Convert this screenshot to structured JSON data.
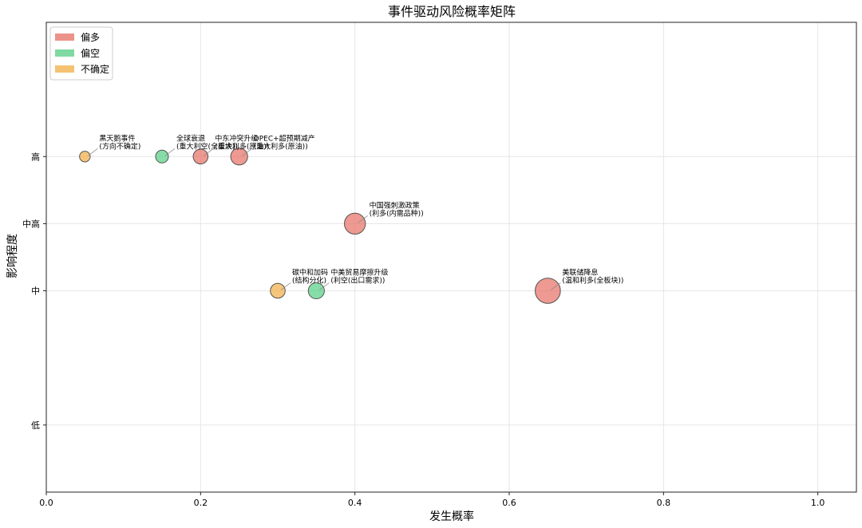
{
  "chart_data": {
    "type": "scatter",
    "title": "事件驱动风险概率矩阵",
    "xlabel": "发生概率",
    "ylabel": "影响程度",
    "xlim": [
      0,
      1.05
    ],
    "ylim": [
      0.0,
      3.5
    ],
    "x_ticks": [
      {
        "value": 0.0,
        "label": "0.0"
      },
      {
        "value": 0.2,
        "label": "0.2"
      },
      {
        "value": 0.4,
        "label": "0.4"
      },
      {
        "value": 0.6,
        "label": "0.6"
      },
      {
        "value": 0.8,
        "label": "0.8"
      },
      {
        "value": 1.0,
        "label": "1.0"
      }
    ],
    "y_ticks": [
      {
        "value": 0.5,
        "label": "低"
      },
      {
        "value": 1.5,
        "label": "中"
      },
      {
        "value": 2.0,
        "label": "中高"
      },
      {
        "value": 2.5,
        "label": "高"
      }
    ],
    "grid": true,
    "legend_position": "top-left",
    "legend": [
      {
        "label": "偏多",
        "color": "#e8776c"
      },
      {
        "label": "偏空",
        "color": "#5fd18a"
      },
      {
        "label": "不确定",
        "color": "#f2b24f"
      }
    ],
    "points": [
      {
        "x": 0.05,
        "y": 2.5,
        "impact": 2.5,
        "category": "不确定",
        "color": "#f2b24f",
        "label_lines": [
          "黑天鹅事件",
          "(方向不确定)"
        ]
      },
      {
        "x": 0.15,
        "y": 2.5,
        "impact": 3.0,
        "category": "偏空",
        "color": "#5fd18a",
        "label_lines": [
          "全球衰退",
          "(重大利空(全板块))"
        ]
      },
      {
        "x": 0.2,
        "y": 2.5,
        "impact": 3.5,
        "category": "偏多",
        "color": "#e8776c",
        "label_lines": [
          "中东冲突升级",
          "(重大利多(原油))"
        ]
      },
      {
        "x": 0.25,
        "y": 2.5,
        "impact": 4.0,
        "category": "偏多",
        "color": "#e8776c",
        "label_lines": [
          "OPEC+超预期减产",
          "(重大利多(原油))"
        ]
      },
      {
        "x": 0.4,
        "y": 2.0,
        "impact": 5.0,
        "category": "偏多",
        "color": "#e8776c",
        "label_lines": [
          "中国强刺激政策",
          "(利多(内需品种))"
        ]
      },
      {
        "x": 0.3,
        "y": 1.5,
        "impact": 3.5,
        "category": "不确定",
        "color": "#f2b24f",
        "label_lines": [
          "碳中和加码",
          "(结构分化)"
        ]
      },
      {
        "x": 0.35,
        "y": 1.5,
        "impact": 3.8,
        "category": "偏空",
        "color": "#5fd18a",
        "label_lines": [
          "中美贸易摩擦升级",
          "(利空(出口需求))"
        ]
      },
      {
        "x": 0.65,
        "y": 1.5,
        "impact": 6.0,
        "category": "偏多",
        "color": "#e8776c",
        "label_lines": [
          "美联储降息",
          "(温和利多(全板块))"
        ]
      }
    ]
  }
}
